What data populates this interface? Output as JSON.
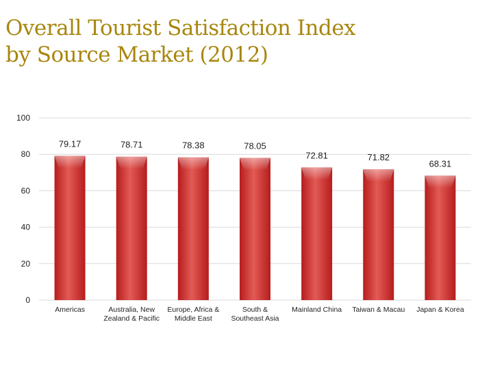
{
  "title": {
    "line1": "Overall Tourist Satisfaction Index",
    "line2": "by Source Market (2012)"
  },
  "colors": {
    "title": "#a8860e",
    "bar_dark": "#b51d1d",
    "bar_light": "#e35a55",
    "grid": "#d9d9d9"
  },
  "chart_data": {
    "type": "bar",
    "title": "Overall Tourist Satisfaction Index by Source Market (2012)",
    "categories": [
      [
        "Americas"
      ],
      [
        "Australia, New",
        "Zealand & Pacific"
      ],
      [
        "Europe, Africa &",
        "Middle East"
      ],
      [
        "South &",
        "Southeast Asia"
      ],
      [
        "Mainland China"
      ],
      [
        "Taiwan & Macau"
      ],
      [
        "Japan & Korea"
      ]
    ],
    "values": [
      79.17,
      78.71,
      78.38,
      78.05,
      72.81,
      71.82,
      68.31
    ],
    "value_labels": [
      "79.17",
      "78.71",
      "78.38",
      "78.05",
      "72.81",
      "71.82",
      "68.31"
    ],
    "ylim": [
      0,
      100
    ],
    "yticks": [
      0,
      20,
      40,
      60,
      80,
      100
    ],
    "grid": true,
    "xlabel": "",
    "ylabel": ""
  }
}
